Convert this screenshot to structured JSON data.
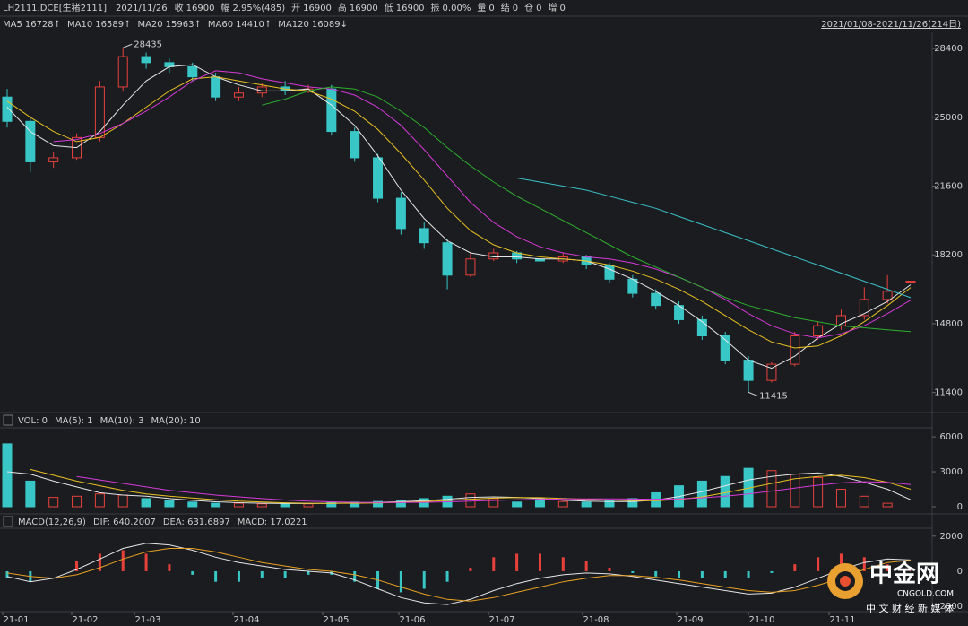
{
  "header": {
    "symbol": "LH2111.DCE[生猪2111]",
    "date": "2021/11/26",
    "items": [
      {
        "label": "收",
        "value": "16900"
      },
      {
        "label": "幅",
        "value": "2.95%(485)"
      },
      {
        "label": "开",
        "value": "16900"
      },
      {
        "label": "高",
        "value": "16900"
      },
      {
        "label": "低",
        "value": "16900"
      },
      {
        "label": "振",
        "value": "0.00%"
      },
      {
        "label": "量",
        "value": "0"
      },
      {
        "label": "结",
        "value": "0"
      },
      {
        "label": "仓",
        "value": "0"
      },
      {
        "label": "增",
        "value": "0"
      }
    ],
    "range": "2021/01/08-2021/11/26(214日)"
  },
  "watermark": {
    "name": "中金网",
    "site": "CNGOLD.COM",
    "slogan": "中 文 财 经 新 媒 体"
  },
  "chart_data": [
    {
      "type": "candlestick",
      "x_labels": [
        "21-01",
        "21-02",
        "21-03",
        "21-04",
        "21-05",
        "21-06",
        "21-07",
        "21-08",
        "21-09",
        "21-10",
        "21-11"
      ],
      "up_color": "#e8413b",
      "down_color": "#38c6c6",
      "candles": {
        "open": [
          26000,
          24800,
          22800,
          23000,
          24000,
          26500,
          28000,
          27700,
          27500,
          27000,
          26000,
          26200,
          26500,
          26300,
          26400,
          24300,
          23000,
          21000,
          19500,
          18800,
          17200,
          18000,
          18300,
          18000,
          17900,
          18100,
          17700,
          17000,
          16300,
          15700,
          15000,
          14200,
          13000,
          12000,
          12800,
          14200,
          14700,
          15200,
          16000,
          16900
        ],
        "high": [
          26400,
          25000,
          23300,
          24200,
          26800,
          28435,
          28200,
          27900,
          27700,
          27200,
          26500,
          26700,
          26800,
          26600,
          26600,
          24500,
          23200,
          21300,
          19800,
          19000,
          18300,
          18500,
          18400,
          18200,
          18300,
          18200,
          17800,
          17200,
          16500,
          15900,
          15200,
          14400,
          13200,
          12900,
          14400,
          14900,
          15500,
          16600,
          17200,
          16900
        ],
        "low": [
          24500,
          22300,
          22500,
          22900,
          23800,
          26300,
          27400,
          27200,
          26800,
          25800,
          25800,
          26000,
          26100,
          26200,
          24100,
          22800,
          20800,
          19200,
          18500,
          16500,
          17100,
          17900,
          17800,
          17700,
          17800,
          17500,
          16800,
          16100,
          15500,
          14800,
          14000,
          12800,
          11415,
          11900,
          12700,
          14000,
          14500,
          15000,
          15800,
          16900
        ],
        "close": [
          24800,
          22800,
          23000,
          24000,
          26500,
          28000,
          27700,
          27500,
          27000,
          26000,
          26200,
          26500,
          26300,
          26400,
          24300,
          23000,
          21000,
          19500,
          18800,
          17200,
          18000,
          18300,
          18000,
          17900,
          18100,
          17700,
          17000,
          16300,
          15700,
          15000,
          14200,
          13000,
          12000,
          12800,
          14200,
          14700,
          15200,
          16000,
          16400,
          16900
        ]
      },
      "series": [
        {
          "name": "MA5",
          "legend_value": "16728↑",
          "color": "#e6e6e6",
          "values": [
            25500,
            24300,
            23600,
            23500,
            24300,
            25600,
            26800,
            27500,
            27600,
            27000,
            26600,
            26300,
            26300,
            26400,
            25600,
            24600,
            23100,
            21400,
            20000,
            18900,
            18300,
            18100,
            18100,
            18000,
            18000,
            17900,
            17500,
            17000,
            16400,
            15700,
            14900,
            14000,
            13000,
            12600,
            13200,
            14100,
            14800,
            15300,
            15900,
            16728
          ]
        },
        {
          "name": "MA10",
          "legend_value": "16589↑",
          "color": "#e8c020",
          "values": [
            25800,
            25000,
            24300,
            23800,
            24000,
            24700,
            25500,
            26300,
            26900,
            27000,
            26800,
            26600,
            26400,
            26300,
            25900,
            25300,
            24400,
            23200,
            21900,
            20500,
            19400,
            18700,
            18300,
            18100,
            18000,
            17900,
            17700,
            17400,
            17000,
            16500,
            15900,
            15200,
            14500,
            13900,
            13600,
            13700,
            14200,
            14900,
            15700,
            16589
          ]
        },
        {
          "name": "MA20",
          "legend_value": "15963↑",
          "color": "#d63ad6",
          "values": [
            null,
            null,
            23800,
            23900,
            24200,
            24700,
            25300,
            26000,
            26800,
            27300,
            27200,
            26900,
            26700,
            26500,
            26400,
            26100,
            25500,
            24600,
            23400,
            22100,
            20800,
            19800,
            19100,
            18600,
            18300,
            18100,
            18000,
            17800,
            17500,
            17100,
            16600,
            16000,
            15300,
            14700,
            14300,
            14100,
            14300,
            14700,
            15300,
            15963
          ]
        },
        {
          "name": "MA60",
          "legend_value": "14410↑",
          "color": "#2eb02e",
          "values": [
            null,
            null,
            null,
            null,
            null,
            null,
            null,
            null,
            null,
            null,
            null,
            25600,
            25900,
            26300,
            26500,
            26400,
            26000,
            25300,
            24500,
            23500,
            22600,
            21800,
            21100,
            20500,
            19900,
            19300,
            18700,
            18100,
            17600,
            17100,
            16600,
            16100,
            15700,
            15400,
            15100,
            14900,
            14700,
            14600,
            14500,
            14410
          ]
        },
        {
          "name": "MA120",
          "legend_value": "16089↓",
          "color": "#3cc0c8",
          "values": [
            null,
            null,
            null,
            null,
            null,
            null,
            null,
            null,
            null,
            null,
            null,
            null,
            null,
            null,
            null,
            null,
            null,
            null,
            null,
            null,
            null,
            null,
            22000,
            21800,
            21600,
            21400,
            21100,
            20800,
            20500,
            20100,
            19700,
            19300,
            18900,
            18500,
            18100,
            17700,
            17300,
            16900,
            16500,
            16089
          ]
        }
      ],
      "annotations": [
        {
          "text": "28435"
        },
        {
          "text": "11415"
        }
      ],
      "ylim": [
        10500,
        29200
      ],
      "yticks": [
        11400,
        14800,
        18200,
        21600,
        25000,
        28400
      ]
    },
    {
      "type": "volume",
      "legend": [
        {
          "text": "VOL: 0",
          "color": "#e6e6e6"
        },
        {
          "text": "MA(5): 1",
          "color": "#e6e6e6"
        },
        {
          "text": "MA(10): 3",
          "color": "#e8c020"
        },
        {
          "text": "MA(20): 10",
          "color": "#d63ad6"
        }
      ],
      "values": [
        5400,
        2200,
        800,
        900,
        1100,
        1000,
        700,
        500,
        400,
        300,
        300,
        250,
        300,
        250,
        350,
        400,
        450,
        500,
        700,
        900,
        1100,
        700,
        400,
        500,
        450,
        400,
        500,
        700,
        1200,
        1800,
        2200,
        2600,
        3300,
        3100,
        2800,
        2500,
        1500,
        900,
        300,
        0
      ],
      "series": [
        {
          "color": "#e6e6e6",
          "values": [
            3000,
            2800,
            2200,
            1700,
            1200,
            1000,
            900,
            700,
            550,
            420,
            350,
            300,
            280,
            280,
            290,
            320,
            370,
            430,
            520,
            640,
            800,
            850,
            800,
            700,
            560,
            480,
            440,
            450,
            570,
            880,
            1300,
            1800,
            2300,
            2600,
            2800,
            2900,
            2600,
            2100,
            1500,
            600
          ]
        },
        {
          "color": "#e8c020",
          "values": [
            null,
            3200,
            2700,
            2200,
            1800,
            1400,
            1100,
            900,
            750,
            600,
            480,
            400,
            340,
            300,
            290,
            300,
            330,
            380,
            450,
            540,
            650,
            740,
            790,
            780,
            720,
            640,
            580,
            530,
            520,
            620,
            850,
            1200,
            1600,
            2000,
            2400,
            2600,
            2700,
            2500,
            2100,
            1500
          ]
        },
        {
          "color": "#d63ad6",
          "values": [
            null,
            null,
            null,
            2600,
            2300,
            2000,
            1700,
            1400,
            1200,
            1000,
            850,
            700,
            580,
            480,
            420,
            380,
            360,
            360,
            380,
            420,
            480,
            540,
            600,
            640,
            670,
            680,
            680,
            660,
            650,
            680,
            760,
            900,
            1100,
            1350,
            1600,
            1850,
            2050,
            2150,
            2100,
            1900
          ]
        }
      ],
      "ylim": [
        -770,
        6700
      ],
      "yticks": [
        0,
        3000,
        6000
      ]
    },
    {
      "type": "macd",
      "legend": [
        {
          "text": "MACD(12,26,9)",
          "color": "#e6e6e6"
        },
        {
          "text": "DIF: 640.2007",
          "color": "#e6e6e6"
        },
        {
          "text": "DEA: 631.6897",
          "color": "#e8c020"
        },
        {
          "text": "MACD: 17.0221",
          "color": "#7fb4ff"
        }
      ],
      "values": [
        -400,
        -600,
        0,
        600,
        1000,
        1200,
        1000,
        400,
        -200,
        -600,
        -600,
        -400,
        -400,
        -200,
        -200,
        -600,
        -1000,
        -1200,
        -1000,
        -600,
        200,
        800,
        1000,
        1000,
        800,
        600,
        200,
        -100,
        -300,
        -400,
        -400,
        -400,
        -400,
        -100,
        400,
        800,
        1000,
        800,
        400,
        17
      ],
      "series": [
        {
          "color": "#e6e6e6",
          "values": [
            -300,
            -600,
            -400,
            100,
            700,
            1300,
            1600,
            1500,
            1200,
            800,
            500,
            300,
            100,
            0,
            -100,
            -500,
            -1000,
            -1500,
            -1800,
            -1900,
            -1600,
            -1100,
            -700,
            -400,
            -200,
            -100,
            -150,
            -300,
            -500,
            -700,
            -900,
            -1100,
            -1300,
            -1250,
            -900,
            -400,
            100,
            500,
            700,
            640
          ]
        },
        {
          "color": "#e8a020",
          "values": [
            -100,
            -300,
            -400,
            -200,
            200,
            700,
            1100,
            1300,
            1300,
            1100,
            800,
            500,
            300,
            100,
            0,
            -200,
            -500,
            -900,
            -1300,
            -1600,
            -1700,
            -1500,
            -1200,
            -900,
            -600,
            -400,
            -250,
            -250,
            -350,
            -500,
            -700,
            -900,
            -1100,
            -1200,
            -1100,
            -800,
            -400,
            100,
            500,
            632
          ]
        }
      ],
      "ylim": [
        -2200,
        2400
      ],
      "yticks": [
        -2000,
        0,
        2000
      ]
    }
  ]
}
